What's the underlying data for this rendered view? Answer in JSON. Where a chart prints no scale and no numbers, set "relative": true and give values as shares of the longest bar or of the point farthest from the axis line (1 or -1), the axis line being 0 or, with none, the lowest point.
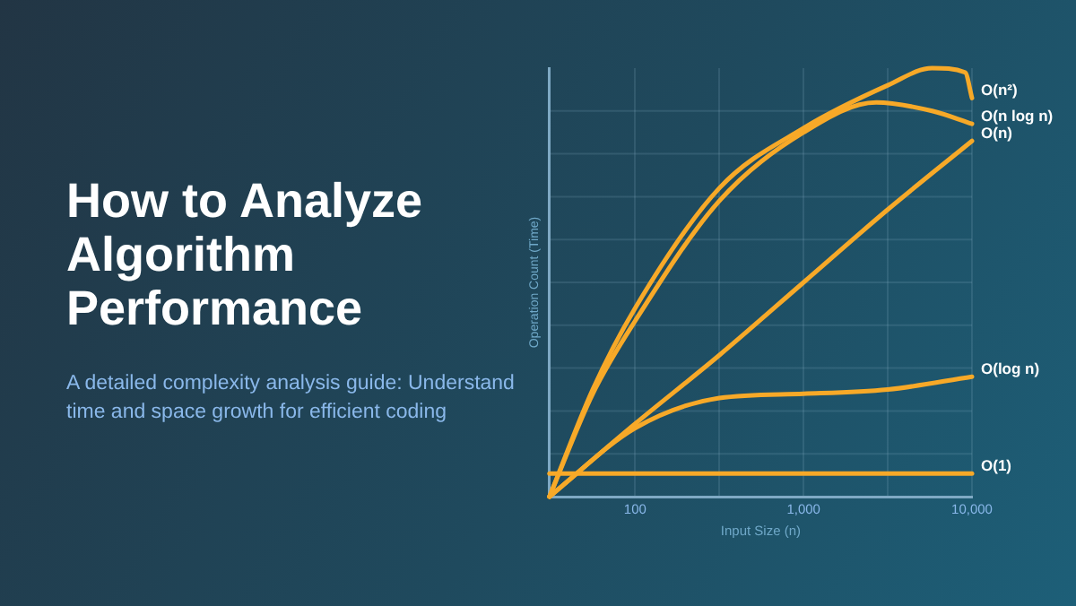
{
  "chart_data": {
    "type": "line",
    "title": "How to Analyze Algorithm Performance",
    "subtitle": "A detailed complexity analysis guide: Understand time and space growth for efficient coding",
    "xlabel": "Input Size (n)",
    "ylabel": "Operation Count (Time)",
    "log": "x",
    "relative": true,
    "xlim": [
      31,
      10000
    ],
    "xticks": [
      {
        "value": 100,
        "label": "100"
      },
      {
        "value": 316,
        "label": null
      },
      {
        "value": 1000,
        "label": "1,000"
      },
      {
        "value": 3162,
        "label": null
      },
      {
        "value": 10000,
        "label": "10,000"
      }
    ],
    "grid": true,
    "legend": false,
    "marker": "none",
    "line_style": "solid",
    "series": [
      {
        "name": "O(n²)",
        "color": "#f7a928",
        "x": [
          31,
          56,
          100,
          316,
          1000,
          3162,
          5800,
          9100,
          10000
        ],
        "values": [
          0,
          0.25,
          0.44,
          0.72,
          0.86,
          0.96,
          1,
          0.99,
          0.93
        ]
      },
      {
        "name": "O(n log n)",
        "color": "#f7a928",
        "x": [
          31,
          56,
          100,
          316,
          1000,
          2700,
          5800,
          10000
        ],
        "values": [
          0,
          0.24,
          0.41,
          0.69,
          0.85,
          0.92,
          0.9,
          0.87
        ]
      },
      {
        "name": "O(n)",
        "color": "#f7a928",
        "x": [
          31,
          100,
          316,
          1000,
          3162,
          10000
        ],
        "values": [
          0,
          0.17,
          0.33,
          0.5,
          0.67,
          0.83
        ]
      },
      {
        "name": "O(log n)",
        "color": "#f7a928",
        "x": [
          31,
          100,
          316,
          1000,
          3162,
          10000
        ],
        "values": [
          0,
          0.16,
          0.23,
          0.24,
          0.25,
          0.28
        ]
      },
      {
        "name": "O(1)",
        "color": "#f7a928",
        "x": [
          31,
          10000
        ],
        "values": [
          0.054,
          0.054
        ]
      }
    ]
  }
}
